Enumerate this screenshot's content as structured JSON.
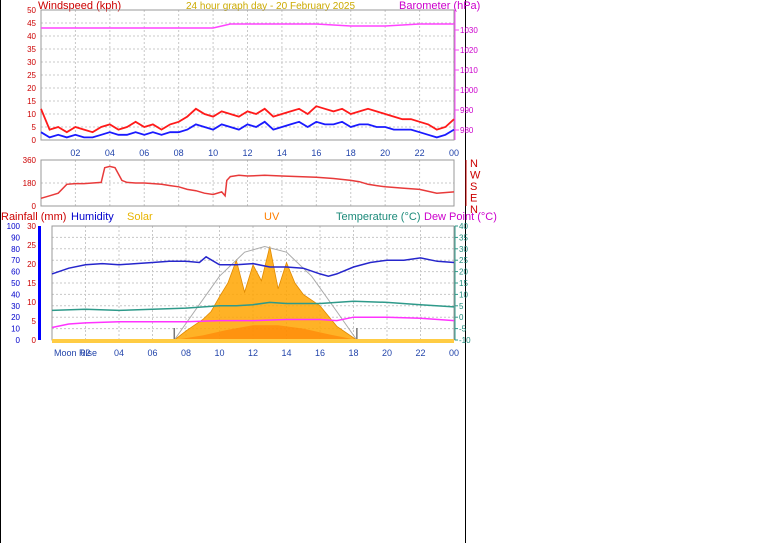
{
  "header": {
    "windspeed_label": "Windspeed (kph)",
    "title": "24 hour graph day - 20 February 2025",
    "barometer_label": "Barometer (hPa)"
  },
  "colors": {
    "wind_gust": "#ff1a1a",
    "wind_avg": "#1a1aff",
    "barometer": "#ff44ff",
    "wind_dir": "#e83a3a",
    "humidity": "#2626cc",
    "temperature": "#2e9a8a",
    "dewpoint": "#ff33ff",
    "solar": "#ffa500",
    "uv": "#ff7f00",
    "rain_axis": "#cc0000",
    "grid": "#c8c8c8"
  },
  "time_ticks": [
    "02",
    "04",
    "06",
    "08",
    "10",
    "12",
    "14",
    "16",
    "18",
    "20",
    "22",
    "00"
  ],
  "panel2": {
    "compass_labels": [
      "N",
      "W",
      "S",
      "E",
      "N"
    ]
  },
  "panel3": {
    "legend": {
      "rainfall": "Rainfall (mm)",
      "humidity": "Humidity",
      "solar": "Solar",
      "uv": "UV",
      "temperature": "Temperature (°C)",
      "dewpoint": "Dew Point (°C)"
    },
    "moon_rise_label": "Moon Rise"
  },
  "chart_data": [
    {
      "type": "line",
      "name": "wind-barometer",
      "x_range_hours": [
        0,
        24
      ],
      "ylim_left": [
        0,
        50
      ],
      "left_ticks": [
        0,
        5,
        10,
        15,
        20,
        25,
        30,
        35,
        40,
        45,
        50
      ],
      "ylim_right": [
        975,
        1040
      ],
      "right_ticks": [
        980,
        990,
        1000,
        1010,
        1020,
        1030
      ],
      "series": [
        {
          "name": "Gust",
          "axis": "left",
          "x": [
            0,
            0.5,
            1,
            1.5,
            2,
            2.5,
            3,
            3.5,
            4,
            4.5,
            5,
            5.5,
            6,
            6.5,
            7,
            7.5,
            8,
            8.5,
            9,
            9.5,
            10,
            10.5,
            11,
            11.5,
            12,
            12.5,
            13,
            13.5,
            14,
            14.5,
            15,
            15.5,
            16,
            16.5,
            17,
            17.5,
            18,
            18.5,
            19,
            19.5,
            20,
            20.5,
            21,
            21.5,
            22,
            22.5,
            23,
            23.5,
            24
          ],
          "y": [
            12,
            4,
            5,
            3,
            5,
            4,
            3,
            5,
            6,
            4,
            5,
            7,
            5,
            6,
            4,
            6,
            7,
            9,
            12,
            10,
            9,
            11,
            10,
            9,
            11,
            10,
            12,
            9,
            10,
            11,
            12,
            10,
            13,
            12,
            11,
            12,
            10,
            11,
            12,
            11,
            10,
            9,
            8,
            8,
            7,
            6,
            4,
            5,
            8
          ]
        },
        {
          "name": "Average",
          "axis": "left",
          "x": [
            0,
            0.5,
            1,
            1.5,
            2,
            2.5,
            3,
            3.5,
            4,
            4.5,
            5,
            5.5,
            6,
            6.5,
            7,
            7.5,
            8,
            8.5,
            9,
            9.5,
            10,
            10.5,
            11,
            11.5,
            12,
            12.5,
            13,
            13.5,
            14,
            14.5,
            15,
            15.5,
            16,
            16.5,
            17,
            17.5,
            18,
            18.5,
            19,
            19.5,
            20,
            20.5,
            21,
            21.5,
            22,
            22.5,
            23,
            23.5,
            24
          ],
          "y": [
            3,
            1,
            2,
            1,
            2,
            1,
            1,
            2,
            3,
            2,
            2,
            3,
            2,
            3,
            2,
            3,
            3,
            4,
            6,
            5,
            4,
            6,
            5,
            4,
            6,
            5,
            7,
            4,
            5,
            6,
            7,
            5,
            7,
            6,
            6,
            7,
            5,
            6,
            6,
            5,
            5,
            4,
            4,
            4,
            3,
            2,
            1,
            2,
            4
          ]
        },
        {
          "name": "Barometer",
          "axis": "right",
          "x": [
            0,
            2,
            4,
            6,
            8,
            10,
            11,
            12,
            14,
            16,
            18,
            20,
            22,
            24
          ],
          "y": [
            1031,
            1031,
            1031,
            1031,
            1031,
            1031,
            1033,
            1033,
            1033,
            1033,
            1032,
            1032,
            1033,
            1033
          ]
        }
      ]
    },
    {
      "type": "line",
      "name": "wind-direction",
      "x_range_hours": [
        0,
        24
      ],
      "ylim": [
        0,
        360
      ],
      "ticks": [
        0,
        180,
        360
      ],
      "series": [
        {
          "name": "Direction",
          "x": [
            0,
            0.5,
            1,
            1.5,
            2,
            2.5,
            3,
            3.5,
            3.7,
            4,
            4.3,
            4.7,
            5,
            5.5,
            6,
            6.5,
            7,
            7.5,
            8,
            8.5,
            9,
            9.5,
            10,
            10.5,
            10.7,
            10.8,
            11,
            11.5,
            12,
            13,
            14,
            15,
            16,
            17,
            18,
            18.5,
            19,
            19.5,
            20,
            21,
            22,
            23,
            24
          ],
          "y": [
            60,
            80,
            100,
            170,
            175,
            175,
            180,
            185,
            300,
            310,
            300,
            200,
            185,
            180,
            180,
            175,
            170,
            160,
            150,
            130,
            120,
            100,
            90,
            110,
            80,
            200,
            230,
            240,
            235,
            240,
            235,
            230,
            225,
            215,
            200,
            190,
            170,
            160,
            150,
            140,
            130,
            100,
            110
          ]
        }
      ]
    },
    {
      "type": "line",
      "name": "multi-sensor",
      "x_range_hours": [
        0,
        24
      ],
      "ylim_left": [
        0,
        100
      ],
      "left_ticks": [
        0,
        10,
        20,
        30,
        40,
        50,
        60,
        70,
        80,
        90,
        100
      ],
      "left_rain_ticks": [
        0,
        5,
        10,
        15,
        20,
        25,
        30
      ],
      "ylim_right": [
        -10,
        40
      ],
      "right_ticks": [
        -10,
        -5,
        0,
        5,
        10,
        15,
        20,
        25,
        30,
        35,
        40
      ],
      "sun_window_hours": [
        7.3,
        18.2
      ],
      "series": [
        {
          "name": "Humidity",
          "axis": "left",
          "x": [
            0,
            1,
            2,
            3,
            4,
            5,
            6,
            7,
            8,
            8.8,
            9.2,
            10,
            11,
            12,
            13,
            14,
            15,
            16,
            16.5,
            17,
            18,
            19,
            20,
            21,
            22,
            23,
            24
          ],
          "y": [
            58,
            63,
            66,
            67,
            66,
            67,
            68,
            69,
            69,
            68,
            73,
            66,
            66,
            67,
            64,
            64,
            63,
            58,
            56,
            58,
            64,
            68,
            70,
            70,
            72,
            69,
            68
          ]
        },
        {
          "name": "Temperature",
          "axis": "right",
          "x": [
            0,
            2,
            4,
            6,
            8,
            10,
            11,
            12,
            13,
            14,
            16,
            18,
            20,
            22,
            24
          ],
          "y": [
            3,
            3.5,
            3,
            3.5,
            4,
            5,
            5,
            5.5,
            6.5,
            6,
            6,
            7,
            6.5,
            5.5,
            4.5
          ]
        },
        {
          "name": "Dew Point",
          "axis": "right",
          "x": [
            0,
            1,
            2,
            4,
            6,
            8,
            10,
            12,
            14,
            16,
            17,
            18,
            20,
            22,
            24
          ],
          "y": [
            -4.5,
            -3,
            -2.5,
            -2,
            -2,
            -2,
            -1.5,
            -1.5,
            -1,
            -1,
            -1.5,
            0,
            0,
            -0.5,
            -1.5
          ]
        },
        {
          "name": "Solar",
          "axis": "left",
          "x": [
            7.3,
            8,
            9,
            9.5,
            10,
            10.5,
            11,
            11.5,
            12,
            12.5,
            13,
            13.5,
            14,
            14.5,
            15,
            16,
            17,
            18.2
          ],
          "y": [
            0,
            8,
            18,
            25,
            38,
            50,
            70,
            42,
            66,
            52,
            82,
            45,
            68,
            50,
            40,
            30,
            12,
            0
          ]
        },
        {
          "name": "UV",
          "axis": "left",
          "x": [
            7.3,
            9,
            10.5,
            12,
            13.5,
            15,
            16.5,
            18.2
          ],
          "y": [
            0,
            4,
            9,
            13,
            13,
            10,
            5,
            0
          ]
        },
        {
          "name": "Max Solar",
          "axis": "left",
          "x": [
            7.3,
            8.5,
            10,
            11.5,
            12.7,
            14,
            15.5,
            17,
            18.2
          ],
          "y": [
            0,
            25,
            56,
            77,
            82,
            77,
            56,
            25,
            0
          ]
        }
      ]
    }
  ]
}
